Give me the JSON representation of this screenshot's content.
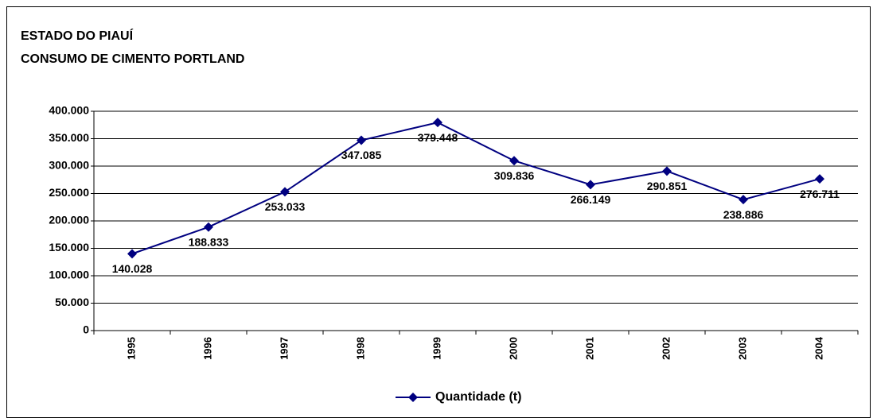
{
  "chart_data": {
    "type": "line",
    "title": [
      "ESTADO DO PIAUÍ",
      "CONSUMO DE CIMENTO PORTLAND"
    ],
    "categories": [
      "1995",
      "1996",
      "1997",
      "1998",
      "1999",
      "2000",
      "2001",
      "2002",
      "2003",
      "2004"
    ],
    "series": [
      {
        "name": "Quantidade (t)",
        "color": "#000080",
        "values": [
          140028,
          188833,
          253033,
          347085,
          379448,
          309836,
          266149,
          290851,
          238886,
          276711
        ],
        "value_labels": [
          "140.028",
          "188.833",
          "253.033",
          "347.085",
          "379.448",
          "309.836",
          "266.149",
          "290.851",
          "238.886",
          "276.711"
        ]
      }
    ],
    "ylim": [
      0,
      400000
    ],
    "yticks": [
      {
        "value": 0,
        "label": "0"
      },
      {
        "value": 50000,
        "label": "50.000"
      },
      {
        "value": 100000,
        "label": "100.000"
      },
      {
        "value": 150000,
        "label": "150.000"
      },
      {
        "value": 200000,
        "label": "200.000"
      },
      {
        "value": 250000,
        "label": "250.000"
      },
      {
        "value": 300000,
        "label": "300.000"
      },
      {
        "value": 350000,
        "label": "350.000"
      },
      {
        "value": 400000,
        "label": "400.000"
      }
    ],
    "grid": true,
    "legend": "bottom"
  }
}
